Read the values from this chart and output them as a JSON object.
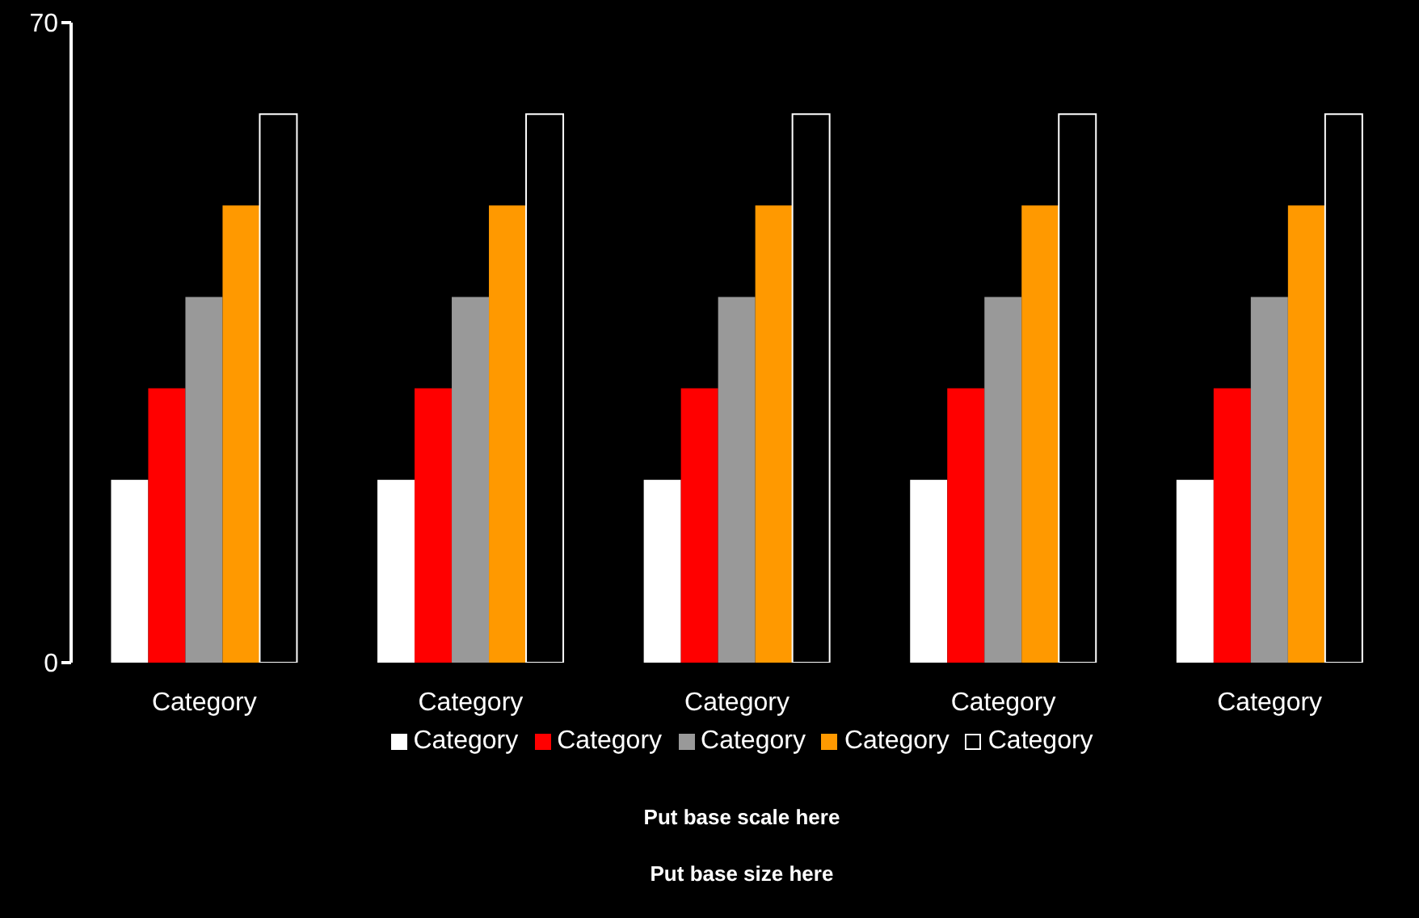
{
  "chart_data": {
    "type": "bar",
    "categories": [
      "Category",
      "Category",
      "Category",
      "Category",
      "Category"
    ],
    "series": [
      {
        "name": "Category",
        "color": "#ffffff",
        "values": [
          20,
          20,
          20,
          20,
          20
        ]
      },
      {
        "name": "Category",
        "color": "#ff0000",
        "values": [
          30,
          30,
          30,
          30,
          30
        ]
      },
      {
        "name": "Category",
        "color": "#999999",
        "values": [
          40,
          40,
          40,
          40,
          40
        ]
      },
      {
        "name": "Category",
        "color": "#ff9900",
        "values": [
          50,
          50,
          50,
          50,
          50
        ]
      },
      {
        "name": "Category",
        "color": "#000000",
        "values": [
          60,
          60,
          60,
          60,
          60
        ]
      }
    ],
    "ylim": [
      0,
      70
    ],
    "yticks": [
      0,
      70
    ],
    "grid": false,
    "legend": "bottom",
    "annotations": [
      "Put base scale here",
      "Put base size here"
    ]
  }
}
